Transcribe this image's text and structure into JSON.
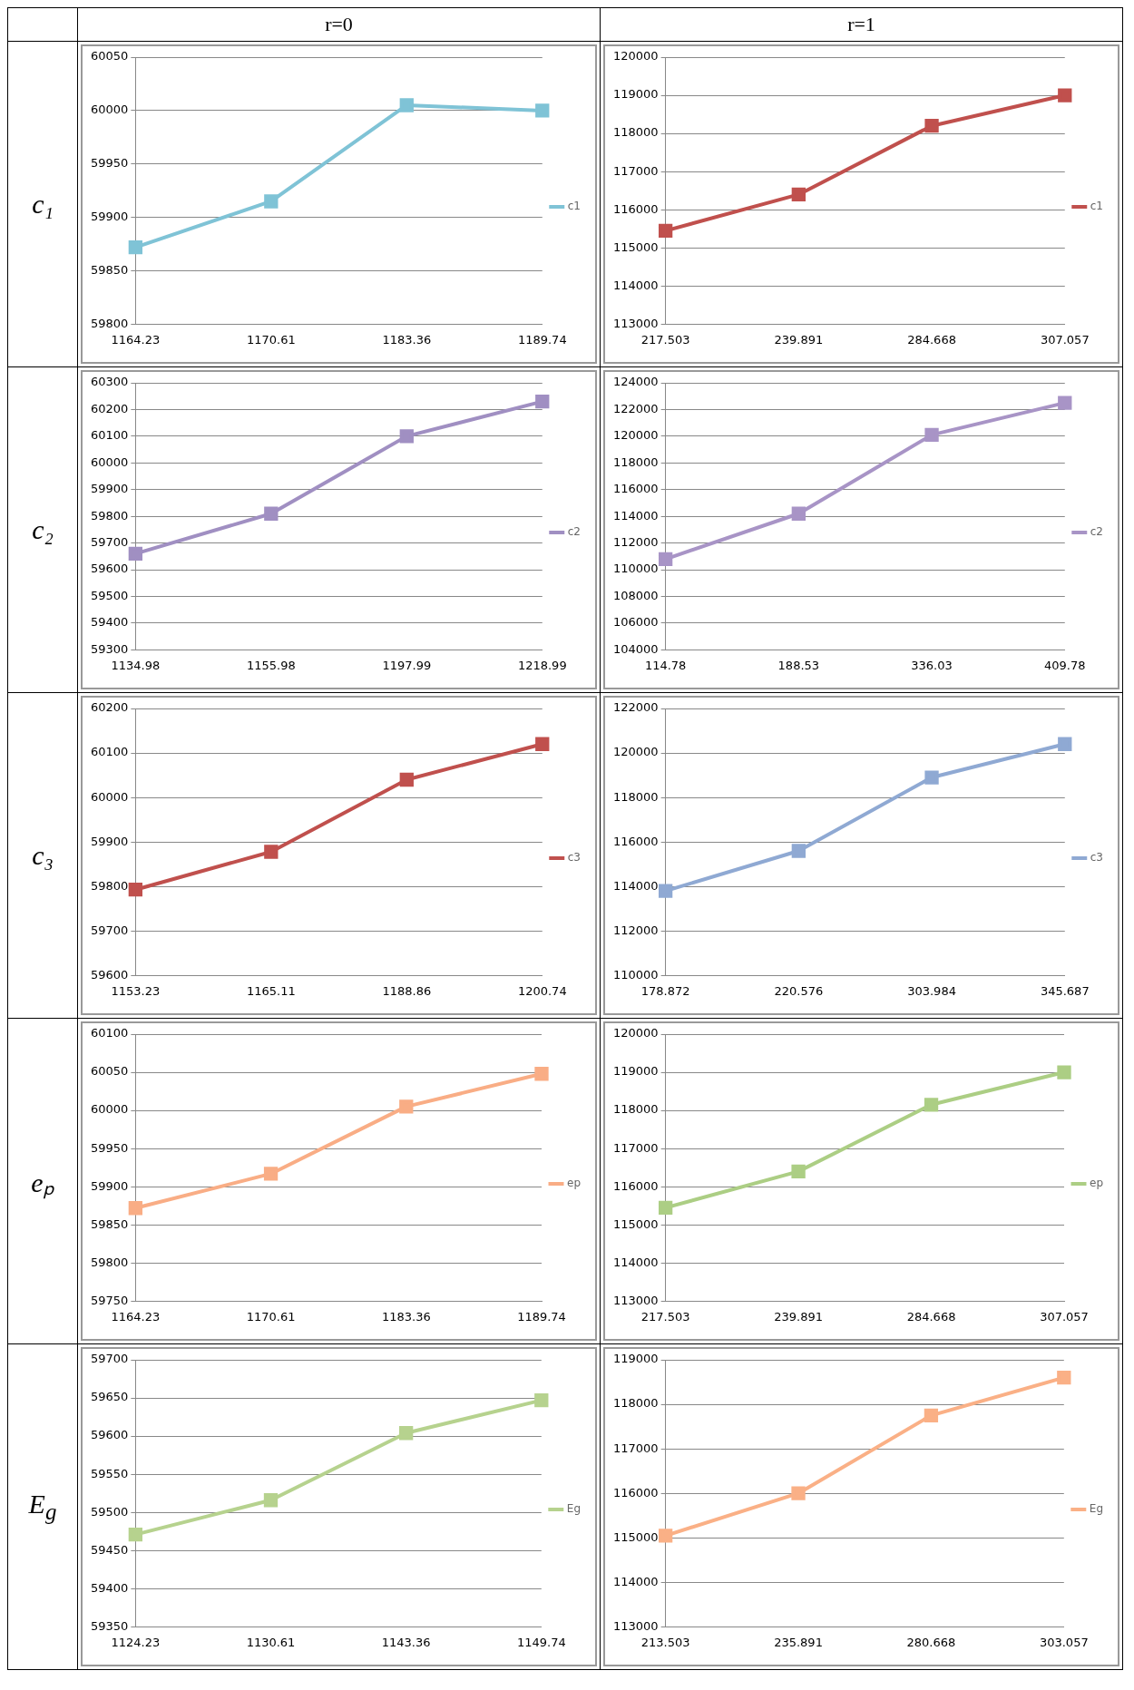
{
  "chart_data": [
    {
      "type": "line",
      "title": "r=0",
      "ylabel": "c₁",
      "categories": [
        "1164.23",
        "1170.61",
        "1183.36",
        "1189.74"
      ],
      "series": [
        {
          "name": "c1",
          "color": "#7fc3d6",
          "values": [
            59872,
            59915,
            60005,
            60000
          ]
        }
      ],
      "ylim": [
        59800,
        60050
      ],
      "yticks": [
        59800,
        59850,
        59900,
        59950,
        60000,
        60050
      ],
      "grid": "y",
      "legend": "right",
      "marker": "square"
    },
    {
      "type": "line",
      "title": "r=1",
      "categories": [
        "217.503",
        "239.891",
        "284.668",
        "307.057"
      ],
      "series": [
        {
          "name": "c1",
          "color": "#c0504d",
          "values": [
            115450,
            116400,
            118200,
            119000
          ]
        }
      ],
      "ylim": [
        113000,
        120000
      ],
      "yticks": [
        113000,
        114000,
        115000,
        116000,
        117000,
        118000,
        119000,
        120000
      ],
      "grid": "y",
      "legend": "right",
      "marker": "square"
    },
    {
      "type": "line",
      "ylabel": "c₂",
      "categories": [
        "1134.98",
        "1155.98",
        "1197.99",
        "1218.99"
      ],
      "series": [
        {
          "name": "c2",
          "color": "#a08fc2",
          "values": [
            59660,
            59810,
            60100,
            60230
          ]
        }
      ],
      "ylim": [
        59300,
        60300
      ],
      "yticks": [
        59300,
        59400,
        59500,
        59600,
        59700,
        59800,
        59900,
        60000,
        60100,
        60200,
        60300
      ],
      "grid": "y",
      "legend": "right",
      "marker": "square"
    },
    {
      "type": "line",
      "categories": [
        "114.78",
        "188.53",
        "336.03",
        "409.78"
      ],
      "series": [
        {
          "name": "c2",
          "color": "#a894c6",
          "values": [
            110800,
            114200,
            120100,
            122500
          ]
        }
      ],
      "ylim": [
        104000,
        124000
      ],
      "yticks": [
        104000,
        106000,
        108000,
        110000,
        112000,
        114000,
        116000,
        118000,
        120000,
        122000,
        124000
      ],
      "grid": "y",
      "legend": "right",
      "marker": "square"
    },
    {
      "type": "line",
      "ylabel": "c₃",
      "categories": [
        "1153.23",
        "1165.11",
        "1188.86",
        "1200.74"
      ],
      "series": [
        {
          "name": "c3",
          "color": "#c0504d",
          "values": [
            59793,
            59878,
            60040,
            60120
          ]
        }
      ],
      "ylim": [
        59600,
        60200
      ],
      "yticks": [
        59600,
        59700,
        59800,
        59900,
        60000,
        60100,
        60200
      ],
      "grid": "y",
      "legend": "right",
      "marker": "square"
    },
    {
      "type": "line",
      "categories": [
        "178.872",
        "220.576",
        "303.984",
        "345.687"
      ],
      "series": [
        {
          "name": "c3",
          "color": "#8fa9d3",
          "values": [
            113800,
            115600,
            118900,
            120400
          ]
        }
      ],
      "ylim": [
        110000,
        122000
      ],
      "yticks": [
        110000,
        112000,
        114000,
        116000,
        118000,
        120000,
        122000
      ],
      "grid": "y",
      "legend": "right",
      "marker": "square"
    },
    {
      "type": "line",
      "ylabel": "eₚ",
      "categories": [
        "1164.23",
        "1170.61",
        "1183.36",
        "1189.74"
      ],
      "series": [
        {
          "name": "ep",
          "color": "#f9ad85",
          "values": [
            59872,
            59917,
            60005,
            60048
          ]
        }
      ],
      "ylim": [
        59750,
        60100
      ],
      "yticks": [
        59750,
        59800,
        59850,
        59900,
        59950,
        60000,
        60050,
        60100
      ],
      "grid": "y",
      "legend": "right",
      "marker": "square"
    },
    {
      "type": "line",
      "categories": [
        "217.503",
        "239.891",
        "284.668",
        "307.057"
      ],
      "series": [
        {
          "name": "ep",
          "color": "#acce84",
          "values": [
            115450,
            116400,
            118150,
            119000
          ]
        }
      ],
      "ylim": [
        113000,
        120000
      ],
      "yticks": [
        113000,
        114000,
        115000,
        116000,
        117000,
        118000,
        119000,
        120000
      ],
      "grid": "y",
      "legend": "right",
      "marker": "square"
    },
    {
      "type": "line",
      "ylabel": "E$_{g}$",
      "categories": [
        "1124.23",
        "1130.61",
        "1143.36",
        "1149.74"
      ],
      "series": [
        {
          "name": "Eg",
          "color": "#b6d28e",
          "values": [
            59471,
            59516,
            59604,
            59647
          ]
        }
      ],
      "ylim": [
        59350,
        59700
      ],
      "yticks": [
        59350,
        59400,
        59450,
        59500,
        59550,
        59600,
        59650,
        59700
      ],
      "grid": "y",
      "legend": "right",
      "marker": "square"
    },
    {
      "type": "line",
      "categories": [
        "213.503",
        "235.891",
        "280.668",
        "303.057"
      ],
      "series": [
        {
          "name": "Eg",
          "color": "#fab086",
          "values": [
            115050,
            116000,
            117750,
            118600
          ]
        }
      ],
      "ylim": [
        113000,
        119000
      ],
      "yticks": [
        113000,
        114000,
        115000,
        116000,
        117000,
        118000,
        119000
      ],
      "grid": "y",
      "legend": "right",
      "marker": "square"
    }
  ]
}
